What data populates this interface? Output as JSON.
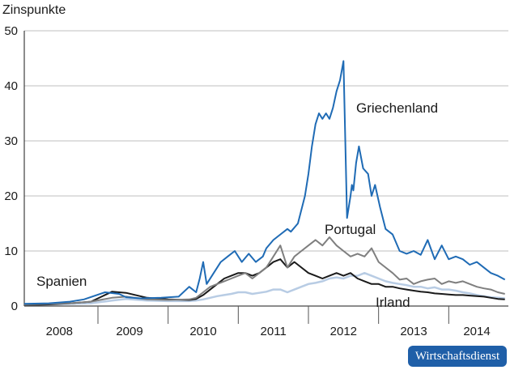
{
  "chart_data": {
    "type": "line",
    "ylabel": "Zinspunkte",
    "ylim": [
      0,
      50
    ],
    "yticks": [
      0,
      10,
      20,
      30,
      40,
      50
    ],
    "xlim": [
      2007.55,
      2014.45
    ],
    "xticks": [
      {
        "label": "2008",
        "pos": 2008.05
      },
      {
        "label": "2009",
        "pos": 2009.05
      },
      {
        "label": "2010",
        "pos": 2010.1
      },
      {
        "label": "2011",
        "pos": 2011.1
      },
      {
        "label": "2012",
        "pos": 2012.1
      },
      {
        "label": "2013",
        "pos": 2013.1
      },
      {
        "label": "2014",
        "pos": 2014.0
      }
    ],
    "xseparators": [
      2008.6,
      2009.6,
      2010.6,
      2011.6,
      2012.6,
      2013.6
    ],
    "series": [
      {
        "name": "Griechenland",
        "color": "#1f6bb5",
        "x": [
          2007.55,
          2007.9,
          2008.2,
          2008.4,
          2008.7,
          2008.9,
          2009.0,
          2009.2,
          2009.5,
          2009.75,
          2009.9,
          2010.0,
          2010.05,
          2010.1,
          2010.15,
          2010.25,
          2010.35,
          2010.45,
          2010.55,
          2010.65,
          2010.75,
          2010.85,
          2010.95,
          2011.0,
          2011.1,
          2011.2,
          2011.3,
          2011.35,
          2011.45,
          2011.55,
          2011.6,
          2011.65,
          2011.7,
          2011.75,
          2011.8,
          2011.85,
          2011.9,
          2011.95,
          2012.0,
          2012.05,
          2012.1,
          2012.15,
          2012.2,
          2012.22,
          2012.24,
          2012.28,
          2012.32,
          2012.38,
          2012.45,
          2012.5,
          2012.55,
          2012.62,
          2012.7,
          2012.8,
          2012.9,
          2013.0,
          2013.1,
          2013.2,
          2013.3,
          2013.4,
          2013.5,
          2013.6,
          2013.7,
          2013.8,
          2013.9,
          2014.0,
          2014.1,
          2014.2,
          2014.3,
          2014.4
        ],
        "y": [
          0.4,
          0.5,
          0.8,
          1.2,
          2.5,
          2.2,
          1.6,
          1.4,
          1.5,
          1.7,
          3.5,
          2.5,
          5,
          8,
          4,
          6,
          8,
          9,
          10,
          8,
          9.5,
          8,
          9,
          10.5,
          12,
          13,
          14,
          13.5,
          15,
          20,
          24,
          29,
          33,
          35,
          34,
          35,
          34,
          36,
          39,
          41,
          44.5,
          16,
          20,
          22,
          21,
          26,
          29,
          25,
          24,
          20,
          22,
          18,
          14,
          13,
          10,
          9.5,
          10,
          9.3,
          12,
          8.5,
          11,
          8.5,
          9,
          8.5,
          7.5,
          8,
          7,
          6,
          5.5,
          4.8
        ]
      },
      {
        "name": "Portugal",
        "color": "#7f7f7f",
        "x": [
          2007.55,
          2007.9,
          2008.2,
          2008.5,
          2008.8,
          2009.0,
          2009.3,
          2009.6,
          2009.9,
          2010.0,
          2010.1,
          2010.2,
          2010.3,
          2010.4,
          2010.5,
          2010.6,
          2010.7,
          2010.8,
          2010.9,
          2011.0,
          2011.1,
          2011.2,
          2011.3,
          2011.4,
          2011.5,
          2011.6,
          2011.7,
          2011.8,
          2011.9,
          2012.0,
          2012.1,
          2012.2,
          2012.3,
          2012.4,
          2012.5,
          2012.6,
          2012.7,
          2012.8,
          2012.9,
          2013.0,
          2013.1,
          2013.2,
          2013.3,
          2013.4,
          2013.5,
          2013.6,
          2013.7,
          2013.8,
          2013.9,
          2014.0,
          2014.1,
          2014.2,
          2014.3,
          2014.4
        ],
        "y": [
          0.3,
          0.4,
          0.5,
          0.8,
          1.5,
          1.7,
          1.2,
          1.1,
          1.2,
          1.5,
          2.5,
          3.5,
          4,
          4.5,
          5,
          5.5,
          6,
          5,
          6,
          7,
          9,
          11,
          7,
          9,
          10,
          11,
          12,
          11,
          12.5,
          11,
          10,
          9,
          9.5,
          9,
          10.5,
          8,
          7,
          6,
          4.8,
          5,
          4,
          4.5,
          4.8,
          5,
          4,
          4.5,
          4.2,
          4.5,
          4,
          3.5,
          3.2,
          3,
          2.5,
          2.2
        ]
      },
      {
        "name": "Spanien",
        "color": "#1a1a1a",
        "x": [
          2007.55,
          2007.9,
          2008.2,
          2008.5,
          2008.8,
          2009.0,
          2009.3,
          2009.6,
          2009.9,
          2010.0,
          2010.1,
          2010.2,
          2010.3,
          2010.4,
          2010.5,
          2010.6,
          2010.7,
          2010.8,
          2010.9,
          2011.0,
          2011.1,
          2011.2,
          2011.3,
          2011.4,
          2011.5,
          2011.6,
          2011.7,
          2011.8,
          2011.9,
          2012.0,
          2012.1,
          2012.2,
          2012.3,
          2012.4,
          2012.5,
          2012.6,
          2012.7,
          2012.8,
          2012.9,
          2013.0,
          2013.1,
          2013.2,
          2013.3,
          2013.4,
          2013.5,
          2013.6,
          2013.7,
          2013.8,
          2013.9,
          2014.0,
          2014.1,
          2014.2,
          2014.3,
          2014.4
        ],
        "y": [
          0.2,
          0.3,
          0.5,
          0.8,
          2.6,
          2.4,
          1.5,
          1.2,
          1.1,
          1.3,
          2,
          3,
          4,
          5,
          5.5,
          6,
          6,
          5.5,
          6,
          7,
          8,
          8.5,
          7,
          8,
          7,
          6,
          5.5,
          5,
          5.5,
          6,
          5.5,
          6,
          5,
          4.5,
          4,
          4,
          3.5,
          3.5,
          3.2,
          3,
          2.8,
          2.6,
          2.5,
          2.3,
          2.2,
          2.1,
          2,
          2,
          1.9,
          1.8,
          1.7,
          1.5,
          1.3,
          1.2
        ]
      },
      {
        "name": "Irland",
        "color": "#b8cce4",
        "x": [
          2007.55,
          2007.9,
          2008.2,
          2008.5,
          2008.8,
          2009.0,
          2009.3,
          2009.6,
          2009.9,
          2010.0,
          2010.1,
          2010.2,
          2010.3,
          2010.4,
          2010.5,
          2010.6,
          2010.7,
          2010.8,
          2010.9,
          2011.0,
          2011.1,
          2011.2,
          2011.3,
          2011.4,
          2011.5,
          2011.6,
          2011.7,
          2011.8,
          2011.9,
          2012.0,
          2012.1,
          2012.2,
          2012.3,
          2012.4,
          2012.5,
          2012.6,
          2012.7,
          2012.8,
          2012.9,
          2013.0,
          2013.1,
          2013.2,
          2013.3,
          2013.4,
          2013.5,
          2013.6,
          2013.7,
          2013.8,
          2013.9,
          2014.0,
          2014.1,
          2014.2,
          2014.3,
          2014.4
        ],
        "y": [
          0.2,
          0.3,
          0.4,
          0.5,
          1,
          1.3,
          1,
          0.9,
          0.9,
          1,
          1.2,
          1.5,
          1.8,
          2,
          2.2,
          2.5,
          2.5,
          2.2,
          2.4,
          2.6,
          3,
          3,
          2.5,
          3,
          3.5,
          4,
          4.2,
          4.5,
          5,
          5.2,
          5,
          5.5,
          5.5,
          6,
          5.5,
          5,
          4.5,
          4.2,
          4,
          3.8,
          3.5,
          3.5,
          3.2,
          3.4,
          3,
          3,
          2.8,
          2.5,
          2.3,
          2,
          1.8,
          1.6,
          1.5,
          1.4
        ]
      }
    ]
  },
  "labels": {
    "griechenland": "Griechenland",
    "portugal": "Portugal",
    "spanien": "Spanien",
    "irland": "Irland"
  },
  "badge": {
    "text": "Wirtschaftsdienst",
    "color": "#1f5fa8"
  }
}
